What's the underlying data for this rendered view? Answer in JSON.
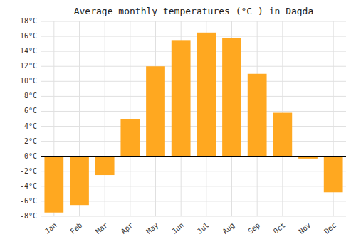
{
  "chart_data": {
    "type": "bar",
    "title": "Average monthly temperatures (°C ) in Dagda",
    "categories": [
      "Jan",
      "Feb",
      "Mar",
      "Apr",
      "May",
      "Jun",
      "Jul",
      "Aug",
      "Sep",
      "Oct",
      "Nov",
      "Dec"
    ],
    "values": [
      -7.5,
      -6.5,
      -2.5,
      5.0,
      12.0,
      15.5,
      16.5,
      15.8,
      11.0,
      5.8,
      -0.3,
      -4.8
    ],
    "color": "#FFA820",
    "ylim": [
      -8,
      18
    ],
    "yticks": [
      {
        "value": -8,
        "label": "-8°C"
      },
      {
        "value": -6,
        "label": "-6°C"
      },
      {
        "value": -4,
        "label": "-4°C"
      },
      {
        "value": -2,
        "label": "-2°C"
      },
      {
        "value": 0,
        "label": "0°C"
      },
      {
        "value": 2,
        "label": "2°C"
      },
      {
        "value": 4,
        "label": "4°C"
      },
      {
        "value": 6,
        "label": "6°C"
      },
      {
        "value": 8,
        "label": "8°C"
      },
      {
        "value": 10,
        "label": "10°C"
      },
      {
        "value": 12,
        "label": "12°C"
      },
      {
        "value": 14,
        "label": "14°C"
      },
      {
        "value": 16,
        "label": "16°C"
      },
      {
        "value": 18,
        "label": "18°C"
      }
    ],
    "grid": true
  }
}
